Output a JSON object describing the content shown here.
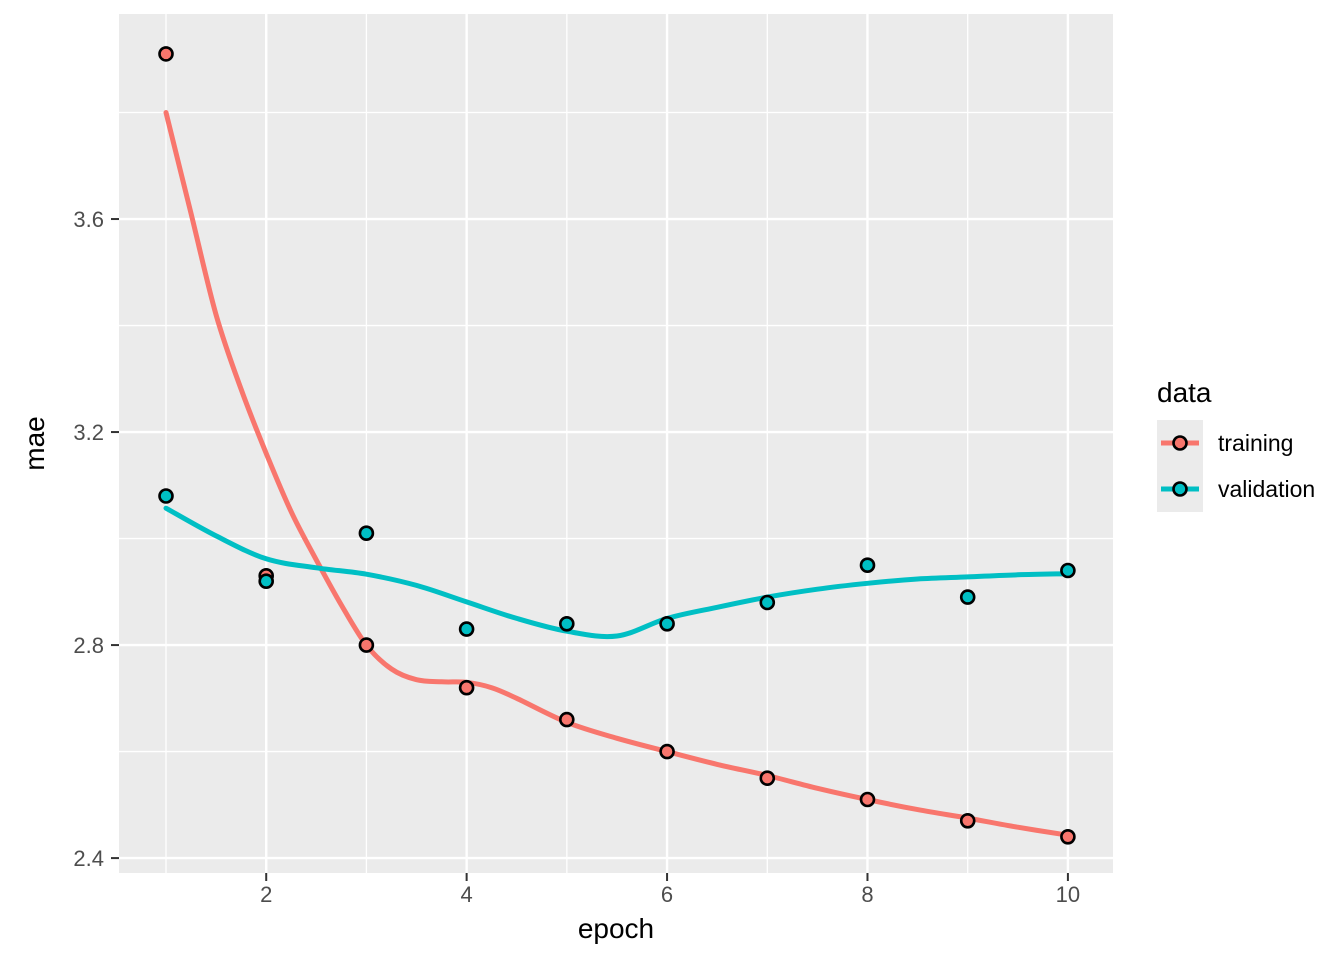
{
  "chart_data": {
    "type": "scatter",
    "title": "",
    "xlabel": "epoch",
    "ylabel": "mae",
    "xlim": [
      0.531,
      10.45
    ],
    "ylim": [
      2.372,
      3.985
    ],
    "grid": true,
    "x_ticks": {
      "values": [
        2,
        4,
        6,
        8,
        10
      ],
      "labels": [
        "2",
        "4",
        "6",
        "8",
        "10"
      ]
    },
    "y_ticks": {
      "values": [
        2.4,
        2.8,
        3.2,
        3.6
      ],
      "labels": [
        "2.4",
        "2.8",
        "3.2",
        "3.6"
      ]
    },
    "x_minor_gridlines": [
      1,
      3,
      5,
      7,
      9
    ],
    "y_minor_gridlines": [
      2.6,
      3.0,
      3.4,
      3.8
    ],
    "legend": {
      "title": "data",
      "position": "right",
      "entries": [
        {
          "label": "training",
          "color": "#F8766D"
        },
        {
          "label": "validation",
          "color": "#00BFC4"
        }
      ]
    },
    "series": [
      {
        "name": "training",
        "color": "#F8766D",
        "epochs": [
          1,
          2,
          3,
          4,
          5,
          6,
          7,
          8,
          9,
          10
        ],
        "mae": [
          3.91,
          2.93,
          2.8,
          2.72,
          2.66,
          2.6,
          2.55,
          2.51,
          2.47,
          2.44
        ],
        "smooth": [
          [
            1,
            3.8
          ],
          [
            1.25,
            3.61
          ],
          [
            1.5,
            3.42
          ],
          [
            1.75,
            3.28
          ],
          [
            2,
            3.16
          ],
          [
            2.25,
            3.05
          ],
          [
            2.5,
            2.96
          ],
          [
            2.75,
            2.875
          ],
          [
            3,
            2.8
          ],
          [
            3.25,
            2.755
          ],
          [
            3.5,
            2.735
          ],
          [
            3.75,
            2.731
          ],
          [
            4,
            2.73
          ],
          [
            4.25,
            2.72
          ],
          [
            4.5,
            2.7
          ],
          [
            5,
            2.655
          ],
          [
            5.5,
            2.625
          ],
          [
            6,
            2.6
          ],
          [
            6.5,
            2.576
          ],
          [
            7,
            2.555
          ],
          [
            7.5,
            2.531
          ],
          [
            8,
            2.51
          ],
          [
            8.5,
            2.491
          ],
          [
            9,
            2.475
          ],
          [
            9.5,
            2.458
          ],
          [
            10,
            2.443
          ]
        ]
      },
      {
        "name": "validation",
        "color": "#00BFC4",
        "epochs": [
          1,
          2,
          3,
          4,
          5,
          6,
          7,
          8,
          9,
          10
        ],
        "mae": [
          3.08,
          2.92,
          3.01,
          2.83,
          2.84,
          2.84,
          2.88,
          2.95,
          2.89,
          2.94
        ],
        "smooth": [
          [
            1,
            3.057
          ],
          [
            1.5,
            3.005
          ],
          [
            2,
            2.962
          ],
          [
            2.5,
            2.945
          ],
          [
            3,
            2.933
          ],
          [
            3.5,
            2.912
          ],
          [
            4,
            2.881
          ],
          [
            4.5,
            2.85
          ],
          [
            5,
            2.826
          ],
          [
            5.5,
            2.817
          ],
          [
            6,
            2.85
          ],
          [
            6.5,
            2.871
          ],
          [
            7,
            2.89
          ],
          [
            7.5,
            2.905
          ],
          [
            8,
            2.916
          ],
          [
            8.5,
            2.924
          ],
          [
            9,
            2.928
          ],
          [
            9.5,
            2.932
          ],
          [
            10,
            2.934
          ]
        ]
      }
    ],
    "style": {
      "panel_background": "#EBEBEB",
      "gridline_color": "#FFFFFF",
      "tick_label_color": "#4D4D4D",
      "tick_mark_color": "#333333",
      "axis_title_color": "#000000",
      "legend_text_color": "#000000",
      "legend_key_background": "#EBEBEB",
      "point_outline_color": "#000000"
    }
  }
}
